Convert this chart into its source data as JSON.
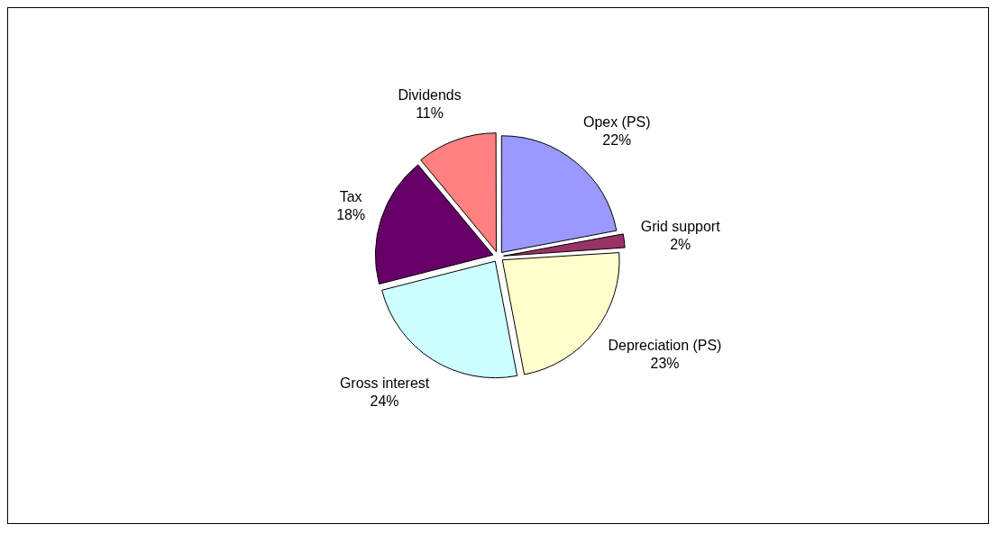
{
  "chart_data": {
    "type": "pie",
    "categories": [
      "Opex (PS)",
      "Grid support",
      "Depreciation (PS)",
      "Gross interest",
      "Tax",
      "Dividends"
    ],
    "values": [
      22,
      2,
      23,
      24,
      18,
      11
    ],
    "colors": [
      "#9999ff",
      "#993366",
      "#ffffcc",
      "#ccffff",
      "#660066",
      "#ff8080"
    ],
    "value_labels": [
      "22%",
      "2%",
      "23%",
      "24%",
      "18%",
      "11%"
    ],
    "legend": false
  }
}
